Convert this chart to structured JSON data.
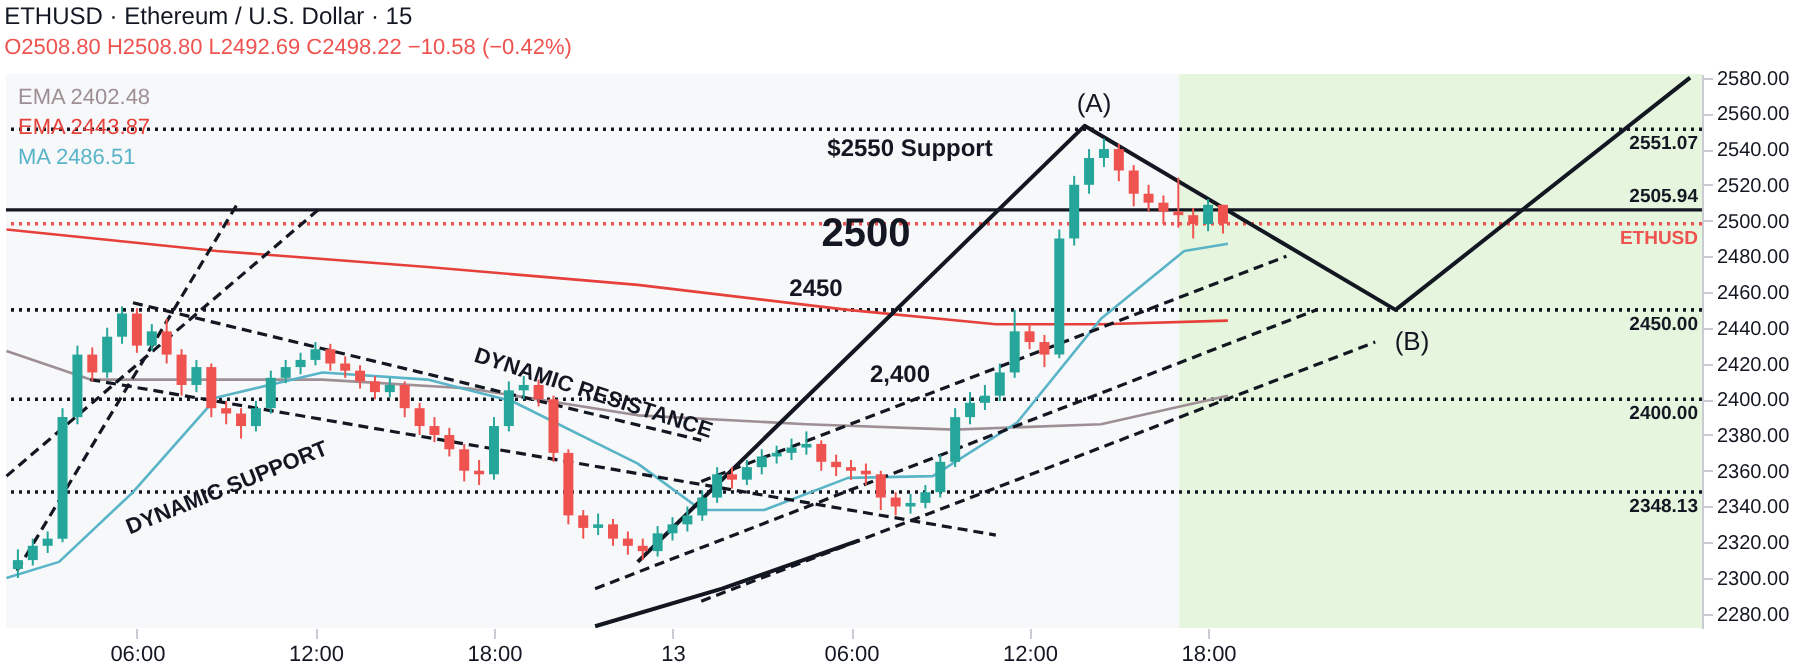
{
  "chart_data": {
    "type": "candlestick",
    "title": "ETHUSD · Ethereum / U.S. Dollar · 15",
    "subtitle": "O2508.80 H2508.80 L2492.69 C2498.22 −10.58 (−0.42%)",
    "x": [
      "--06-12T02:00",
      "--06-12T02:30",
      "--06-12T03:00",
      "--06-12T03:30",
      "--06-12T04:00",
      "--06-12T04:30",
      "--06-12T05:00",
      "--06-12T05:30",
      "--06-12T06:00",
      "--06-12T06:30",
      "--06-12T07:00",
      "--06-12T07:30",
      "--06-12T08:00",
      "--06-12T08:30",
      "--06-12T09:00",
      "--06-12T09:30",
      "--06-12T10:00",
      "--06-12T10:30",
      "--06-12T11:00",
      "--06-12T11:30",
      "--06-12T12:00",
      "--06-12T12:30",
      "--06-12T13:00",
      "--06-12T13:30",
      "--06-12T14:00",
      "--06-12T14:30",
      "--06-12T15:00",
      "--06-12T15:30",
      "--06-12T16:00",
      "--06-12T16:30",
      "--06-12T17:00",
      "--06-12T17:30",
      "--06-12T18:00",
      "--06-12T18:30",
      "--06-12T19:00",
      "--06-12T19:30",
      "--06-12T20:00",
      "--06-12T20:30",
      "--06-12T21:00",
      "--06-12T21:30",
      "--06-12T22:00",
      "--06-12T22:30",
      "--06-12T23:00",
      "--06-12T23:30",
      "--06-13T00:00",
      "--06-13T00:30",
      "--06-13T01:00",
      "--06-13T01:30",
      "--06-13T02:00",
      "--06-13T02:30",
      "--06-13T03:00",
      "--06-13T03:30",
      "--06-13T04:00",
      "--06-13T04:30",
      "--06-13T05:00",
      "--06-13T05:30",
      "--06-13T06:00",
      "--06-13T06:30",
      "--06-13T07:00",
      "--06-13T07:30",
      "--06-13T08:00",
      "--06-13T08:30",
      "--06-13T09:00",
      "--06-13T09:30",
      "--06-13T10:00",
      "--06-13T10:30",
      "--06-13T11:00",
      "--06-13T11:30",
      "--06-13T12:00",
      "--06-13T12:30",
      "--06-13T13:00",
      "--06-13T13:30",
      "--06-13T14:00",
      "--06-13T14:30",
      "--06-13T15:00",
      "--06-13T15:30",
      "--06-13T16:00",
      "--06-13T16:30",
      "--06-13T17:00",
      "--06-13T17:30",
      "--06-13T18:00",
      "--06-13T18:30"
    ],
    "ohlc": [
      [
        2305,
        2316,
        2300,
        2310
      ],
      [
        2310,
        2322,
        2307,
        2318
      ],
      [
        2318,
        2326,
        2314,
        2322
      ],
      [
        2322,
        2395,
        2320,
        2390
      ],
      [
        2390,
        2430,
        2386,
        2425
      ],
      [
        2425,
        2429,
        2410,
        2415
      ],
      [
        2415,
        2440,
        2412,
        2435
      ],
      [
        2435,
        2452,
        2431,
        2448
      ],
      [
        2448,
        2451,
        2426,
        2430
      ],
      [
        2430,
        2442,
        2427,
        2438
      ],
      [
        2438,
        2445,
        2420,
        2425
      ],
      [
        2425,
        2428,
        2402,
        2408
      ],
      [
        2408,
        2422,
        2404,
        2418
      ],
      [
        2418,
        2420,
        2390,
        2395
      ],
      [
        2395,
        2399,
        2386,
        2392
      ],
      [
        2392,
        2395,
        2378,
        2385
      ],
      [
        2385,
        2399,
        2382,
        2395
      ],
      [
        2395,
        2416,
        2392,
        2412
      ],
      [
        2412,
        2422,
        2409,
        2418
      ],
      [
        2418,
        2426,
        2414,
        2422
      ],
      [
        2422,
        2432,
        2419,
        2428
      ],
      [
        2428,
        2431,
        2416,
        2420
      ],
      [
        2420,
        2424,
        2412,
        2416
      ],
      [
        2416,
        2419,
        2406,
        2410
      ],
      [
        2410,
        2413,
        2400,
        2404
      ],
      [
        2404,
        2412,
        2401,
        2408
      ],
      [
        2408,
        2410,
        2390,
        2395
      ],
      [
        2395,
        2398,
        2380,
        2385
      ],
      [
        2385,
        2390,
        2376,
        2380
      ],
      [
        2380,
        2384,
        2368,
        2372
      ],
      [
        2372,
        2375,
        2354,
        2360
      ],
      [
        2360,
        2366,
        2352,
        2358
      ],
      [
        2358,
        2390,
        2355,
        2385
      ],
      [
        2385,
        2410,
        2382,
        2405
      ],
      [
        2405,
        2413,
        2400,
        2408
      ],
      [
        2408,
        2411,
        2396,
        2400
      ],
      [
        2400,
        2402,
        2365,
        2370
      ],
      [
        2370,
        2372,
        2330,
        2335
      ],
      [
        2335,
        2338,
        2322,
        2328
      ],
      [
        2328,
        2336,
        2324,
        2330
      ],
      [
        2330,
        2333,
        2318,
        2322
      ],
      [
        2322,
        2326,
        2313,
        2318
      ],
      [
        2318,
        2322,
        2310,
        2315
      ],
      [
        2315,
        2329,
        2312,
        2325
      ],
      [
        2325,
        2334,
        2321,
        2330
      ],
      [
        2330,
        2340,
        2326,
        2335
      ],
      [
        2335,
        2349,
        2332,
        2345
      ],
      [
        2345,
        2362,
        2342,
        2358
      ],
      [
        2358,
        2362,
        2350,
        2355
      ],
      [
        2355,
        2366,
        2352,
        2362
      ],
      [
        2362,
        2372,
        2358,
        2368
      ],
      [
        2368,
        2374,
        2364,
        2370
      ],
      [
        2370,
        2378,
        2366,
        2373
      ],
      [
        2373,
        2382,
        2369,
        2375
      ],
      [
        2375,
        2377,
        2360,
        2365
      ],
      [
        2365,
        2369,
        2357,
        2362
      ],
      [
        2362,
        2366,
        2355,
        2360
      ],
      [
        2360,
        2364,
        2352,
        2358
      ],
      [
        2358,
        2360,
        2338,
        2345
      ],
      [
        2345,
        2348,
        2335,
        2340
      ],
      [
        2340,
        2347,
        2336,
        2342
      ],
      [
        2342,
        2352,
        2339,
        2348
      ],
      [
        2348,
        2369,
        2345,
        2365
      ],
      [
        2365,
        2395,
        2362,
        2390
      ],
      [
        2390,
        2404,
        2386,
        2398
      ],
      [
        2398,
        2408,
        2394,
        2402
      ],
      [
        2402,
        2420,
        2399,
        2415
      ],
      [
        2415,
        2450,
        2412,
        2438
      ],
      [
        2438,
        2442,
        2428,
        2432
      ],
      [
        2432,
        2436,
        2418,
        2425
      ],
      [
        2425,
        2495,
        2423,
        2490
      ],
      [
        2490,
        2525,
        2486,
        2520
      ],
      [
        2520,
        2540,
        2515,
        2535
      ],
      [
        2535,
        2546,
        2530,
        2540
      ],
      [
        2540,
        2543,
        2522,
        2528
      ],
      [
        2528,
        2531,
        2508,
        2515
      ],
      [
        2515,
        2520,
        2505,
        2510
      ],
      [
        2510,
        2514,
        2498,
        2505
      ],
      [
        2505,
        2524,
        2496,
        2503
      ],
      [
        2503,
        2507,
        2490,
        2498
      ],
      [
        2498,
        2512,
        2494,
        2508.8
      ],
      [
        2508.8,
        2508.8,
        2492.69,
        2498.22
      ]
    ],
    "series": [
      {
        "type": "line",
        "name": "EMA 2402.48",
        "color": "#9e8f95",
        "x": [
          "--06-12T01:37",
          "--06-12T04:26",
          "--06-12T08:41",
          "--06-12T12:14",
          "--06-12T17:11",
          "--06-12T22:50",
          "--06-13T04:30",
          "--06-13T09:28",
          "--06-13T14:24",
          "--06-13T18:40"
        ],
        "values": [
          2427,
          2411,
          2411,
          2411,
          2406,
          2391,
          2386,
          2383,
          2386,
          2402
        ]
      },
      {
        "type": "line",
        "name": "EMA 2443.87",
        "color": "#e5403a",
        "x": [
          "--06-12T01:37",
          "--06-12T08:41",
          "--06-12T15:46",
          "--06-12T22:50",
          "--06-13T05:54",
          "--06-13T10:52",
          "--06-13T14:24",
          "--06-13T18:40"
        ],
        "values": [
          2495,
          2483,
          2474,
          2464,
          2450,
          2442,
          2442,
          2444
        ]
      },
      {
        "type": "line",
        "name": "MA 2486.51",
        "color": "#5ab4c8",
        "x": [
          "--06-12T01:37",
          "--06-12T03:23",
          "--06-12T05:52",
          "--06-12T08:41",
          "--06-12T12:14",
          "--06-12T15:46",
          "--06-12T18:36",
          "--06-12T22:50",
          "--06-13T00:58",
          "--06-13T03:05",
          "--06-13T05:54",
          "--06-13T08:45",
          "--06-13T11:35",
          "--06-13T14:24",
          "--06-13T17:12",
          "--06-13T18:40"
        ],
        "values": [
          2300,
          2309,
          2348,
          2401,
          2415,
          2411,
          2399,
          2364,
          2338,
          2338,
          2356,
          2357,
          2387,
          2445,
          2483,
          2487
        ]
      },
      {
        "type": "line",
        "color": "#131722",
        "line_style": "solid",
        "x": [
          "--06-12T22:50",
          "--06-13T13:51",
          "--06-14T00:18",
          "--06-14T10:12"
        ],
        "values": [
          2309,
          2553,
          2450,
          2580
        ]
      },
      {
        "type": "line",
        "color": "#131722",
        "line_style": "dashed",
        "x": [
          "--06-12T01:58",
          "--06-12T09:24"
        ],
        "values": [
          2304,
          2510
        ]
      },
      {
        "type": "line",
        "color": "#131722",
        "line_style": "dashed",
        "x": [
          "--06-12T01:37",
          "--06-12T12:14"
        ],
        "values": [
          2357,
          2508
        ]
      },
      {
        "type": "line",
        "color": "#131722",
        "line_style": "dashed",
        "x": [
          "--06-12T05:52",
          "--06-13T00:58"
        ],
        "values": [
          2454,
          2377
        ]
      },
      {
        "type": "line",
        "color": "#131722",
        "line_style": "dashed",
        "x": [
          "--06-12T04:26",
          "--06-13T10:52"
        ],
        "values": [
          2411,
          2324
        ]
      },
      {
        "type": "line",
        "color": "#131722",
        "line_style": "dashed",
        "x": [
          "--06-13T00:58",
          "--06-13T20:38"
        ],
        "values": [
          2354,
          2480
        ]
      },
      {
        "type": "line",
        "color": "#131722",
        "line_style": "dashed",
        "x": [
          "--06-12T21:24",
          "--06-13T21:38"
        ],
        "values": [
          2294,
          2450
        ]
      },
      {
        "type": "line",
        "color": "#131722",
        "line_style": "dashed",
        "x": [
          "--06-13T00:58",
          "--06-13T23:37"
        ],
        "values": [
          2287,
          2432
        ]
      },
      {
        "type": "line",
        "color": "#131722",
        "line_style": "solid",
        "x": [
          "--06-12T21:24",
          "--06-13T01:40",
          "--06-13T06:16"
        ],
        "values": [
          2273,
          2294,
          2321
        ]
      }
    ],
    "xlim": [
      "--06-12T01:36",
      "--06-14T10:36"
    ],
    "xticks": [
      {
        "value": "--06-12T06:00",
        "label": "06:00"
      },
      {
        "value": "--06-12T12:00",
        "label": "12:00"
      },
      {
        "value": "--06-12T18:00",
        "label": "18:00"
      },
      {
        "value": "--06-13T00:00",
        "label": "13"
      },
      {
        "value": "--06-13T06:00",
        "label": "06:00"
      },
      {
        "value": "--06-13T12:00",
        "label": "12:00"
      },
      {
        "value": "--06-13T18:00",
        "label": "18:00"
      }
    ],
    "ylim": [
      2272,
      2582
    ],
    "yticks": [
      {
        "value": 2280,
        "label": "2280.00"
      },
      {
        "value": 2300,
        "label": "2300.00"
      },
      {
        "value": 2320,
        "label": "2320.00"
      },
      {
        "value": 2340,
        "label": "2340.00"
      },
      {
        "value": 2360,
        "label": "2360.00"
      },
      {
        "value": 2380,
        "label": "2380.00"
      },
      {
        "value": 2400,
        "label": "2400.00"
      },
      {
        "value": 2420,
        "label": "2420.00"
      },
      {
        "value": 2440,
        "label": "2440.00"
      },
      {
        "value": 2460,
        "label": "2460.00"
      },
      {
        "value": 2480,
        "label": "2480.00"
      },
      {
        "value": 2500,
        "label": "2500.00"
      },
      {
        "value": 2520,
        "label": "2520.00"
      },
      {
        "value": 2540,
        "label": "2540.00"
      },
      {
        "value": 2560,
        "label": "2560.00"
      },
      {
        "value": 2580,
        "label": "2580.00"
      }
    ],
    "ref_lines": [
      {
        "axis": "y",
        "value": 2551.07,
        "label": "2551.07",
        "color": "#131722",
        "line_style": "dotted"
      },
      {
        "axis": "y",
        "value": 2505.94,
        "label": "2505.94",
        "color": "#131722",
        "line_style": "solid"
      },
      {
        "axis": "y",
        "value": 2498.22,
        "label": "ETHUSD",
        "color": "#ef5350",
        "line_style": "dotted"
      },
      {
        "axis": "y",
        "value": 2450,
        "label": "2450.00",
        "color": "#131722",
        "line_style": "dotted"
      },
      {
        "axis": "y",
        "value": 2400,
        "label": "2400.00",
        "color": "#131722",
        "line_style": "dotted"
      },
      {
        "axis": "y",
        "value": 2348.13,
        "label": "2348.13",
        "color": "#131722",
        "line_style": "dotted"
      }
    ],
    "bands": [
      {
        "axis": "x",
        "from": "--06-13T17:02",
        "to": "--06-14T10:36",
        "color": "#e3f4d7"
      }
    ],
    "annotations": [
      "(A)",
      "(B)",
      "$2550 Support",
      "2500",
      "2450",
      "2,400",
      {
        "text": "DYNAMIC RESISTANCE",
        "x": "--06-12T21:20",
        "y": 2403
      },
      {
        "text": "DYNAMIC SUPPORT",
        "x": "--06-12T09:02",
        "y": 2350
      }
    ],
    "grid": false
  }
}
